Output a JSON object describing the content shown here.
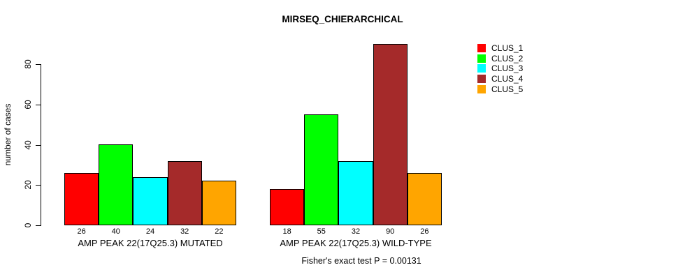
{
  "chart_data": {
    "type": "bar",
    "title": "MIRSEQ_CHIERARCHICAL",
    "ylabel": "number of cases",
    "xlabel": "",
    "ylim": [
      0,
      80
    ],
    "yticks": [
      0,
      20,
      40,
      60,
      80
    ],
    "grid": false,
    "legend_position": "right-outside",
    "series_colors": [
      "#FF0000",
      "#00FF00",
      "#00FFFF",
      "#A52A2A",
      "#FFA500"
    ],
    "legend": [
      {
        "label": "CLUS_1",
        "color": "#FF0000"
      },
      {
        "label": "CLUS_2",
        "color": "#00FF00"
      },
      {
        "label": "CLUS_3",
        "color": "#00FFFF"
      },
      {
        "label": "CLUS_4",
        "color": "#A52A2A"
      },
      {
        "label": "CLUS_5",
        "color": "#FFA500"
      }
    ],
    "groups": [
      {
        "label": "AMP PEAK 22(17Q25.3) MUTATED",
        "values": [
          26,
          40,
          24,
          32,
          22
        ],
        "value_labels": [
          "26",
          "40",
          "24",
          "32",
          "22"
        ]
      },
      {
        "label": "AMP PEAK 22(17Q25.3) WILD-TYPE",
        "values": [
          18,
          55,
          32,
          90,
          26
        ],
        "value_labels": [
          "18",
          "55",
          "32",
          "90",
          "26"
        ]
      }
    ],
    "footer": "Fisher's exact test P = 0.00131"
  }
}
